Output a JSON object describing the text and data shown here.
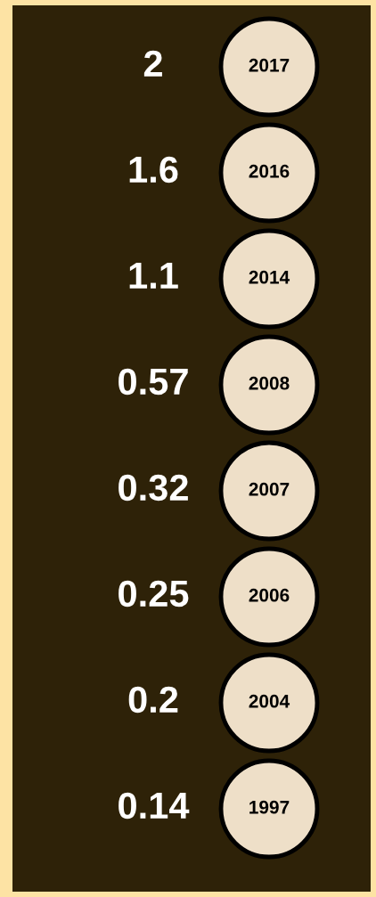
{
  "chart_data": {
    "type": "other",
    "categories": [
      "2017",
      "2016",
      "2014",
      "2008",
      "2007",
      "2006",
      "2004",
      "1997"
    ],
    "values": [
      2,
      1.6,
      1.1,
      0.57,
      0.32,
      0.25,
      0.2,
      0.14
    ],
    "data_labels": true,
    "color": "#eedfc8"
  }
}
